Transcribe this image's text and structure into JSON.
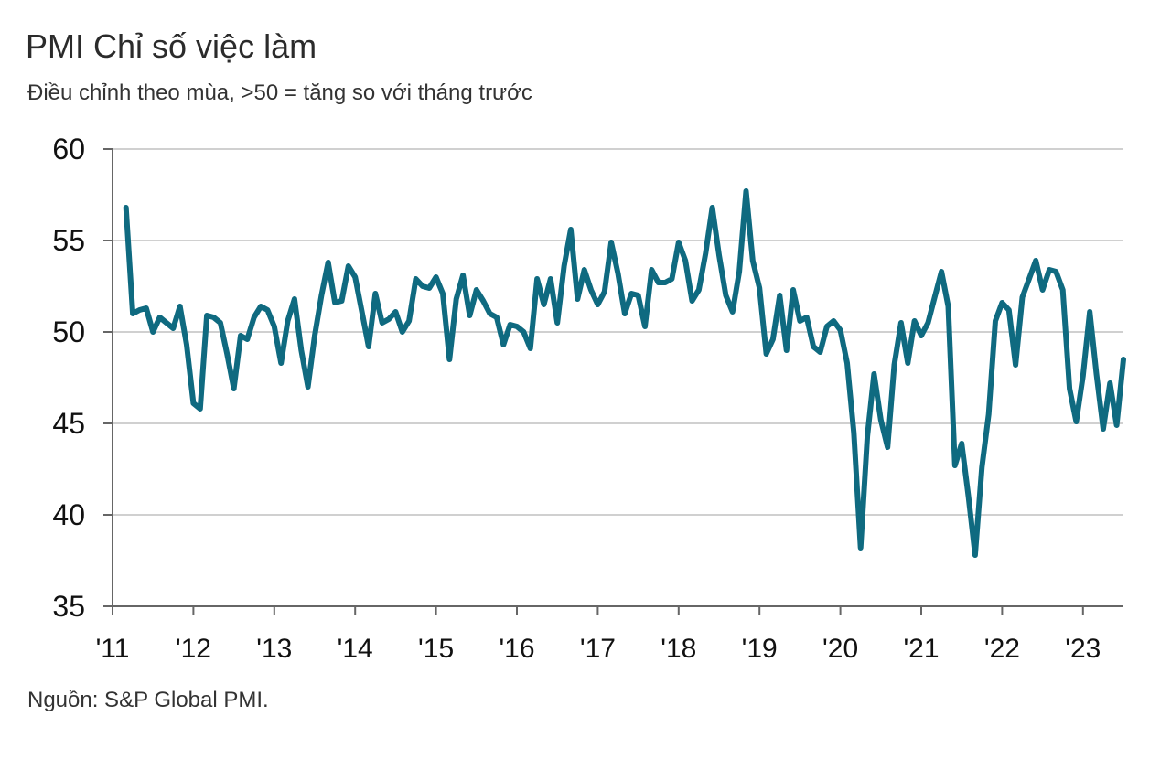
{
  "header": {
    "title": "PMI Chỉ số việc làm",
    "subtitle": "Điều chỉnh theo mùa, >50 = tăng so với tháng trước"
  },
  "footer": {
    "source": "Nguồn: S&P Global PMI."
  },
  "colors": {
    "line": "#0f6a80",
    "grid": "#d0d0d0",
    "axis": "#666666"
  },
  "chart_data": {
    "type": "line",
    "title": "PMI Chỉ số việc làm",
    "subtitle": "Điều chỉnh theo mùa, >50 = tăng so với tháng trước",
    "xlabel": "",
    "ylabel": "",
    "ylim": [
      35,
      60
    ],
    "yticks": [
      35,
      40,
      45,
      50,
      55,
      60
    ],
    "xlim": [
      2011.0,
      2023.5
    ],
    "xticks": [
      {
        "value": 2011,
        "label": "'11"
      },
      {
        "value": 2012,
        "label": "'12"
      },
      {
        "value": 2013,
        "label": "'13"
      },
      {
        "value": 2014,
        "label": "'14"
      },
      {
        "value": 2015,
        "label": "'15"
      },
      {
        "value": 2016,
        "label": "'16"
      },
      {
        "value": 2017,
        "label": "'17"
      },
      {
        "value": 2018,
        "label": "'18"
      },
      {
        "value": 2019,
        "label": "'19"
      },
      {
        "value": 2020,
        "label": "'20"
      },
      {
        "value": 2021,
        "label": "'21"
      },
      {
        "value": 2022,
        "label": "'22"
      },
      {
        "value": 2023,
        "label": "'23"
      }
    ],
    "grid": true,
    "legend": "none",
    "series": [
      {
        "start_year": 2011,
        "start_month": 3,
        "values": [
          56.8,
          51.0,
          51.2,
          51.3,
          50.0,
          50.8,
          50.5,
          50.2,
          51.4,
          49.3,
          46.1,
          45.8,
          50.9,
          50.8,
          50.5,
          48.8,
          46.9,
          49.8,
          49.6,
          50.8,
          51.4,
          51.2,
          50.3,
          48.3,
          50.6,
          51.8,
          49.0,
          47.0,
          49.8,
          52.0,
          53.8,
          51.6,
          51.7,
          53.6,
          53.0,
          51.1,
          49.2,
          52.1,
          50.5,
          50.7,
          51.1,
          50.0,
          50.6,
          52.9,
          52.5,
          52.4,
          53.0,
          52.1,
          48.5,
          51.8,
          53.1,
          50.9,
          52.3,
          51.7,
          51.0,
          50.8,
          49.3,
          50.4,
          50.3,
          50.0,
          49.1,
          52.9,
          51.5,
          52.9,
          50.5,
          53.6,
          55.6,
          51.8,
          53.4,
          52.3,
          51.5,
          52.2,
          54.9,
          53.2,
          51.0,
          52.1,
          52.0,
          50.3,
          53.4,
          52.7,
          52.7,
          52.9,
          54.9,
          53.9,
          51.7,
          52.3,
          54.3,
          56.8,
          54.2,
          52.0,
          51.1,
          53.3,
          57.7,
          53.9,
          52.4,
          48.8,
          49.6,
          52.0,
          49.0,
          52.3,
          50.6,
          50.8,
          49.2,
          48.9,
          50.3,
          50.6,
          50.1,
          48.3,
          44.5,
          38.2,
          44.3,
          47.7,
          45.2,
          43.7,
          48.2,
          50.5,
          48.3,
          50.6,
          49.8,
          50.5,
          51.9,
          53.3,
          51.4,
          42.7,
          43.9,
          41.0,
          37.8,
          42.6,
          45.5,
          50.6,
          51.6,
          51.2,
          48.2,
          51.9,
          52.9,
          53.9,
          52.3,
          53.4,
          53.3,
          52.3,
          46.9,
          45.1,
          47.6,
          51.1,
          47.7,
          44.7,
          47.2,
          44.9,
          48.5
        ]
      }
    ]
  }
}
